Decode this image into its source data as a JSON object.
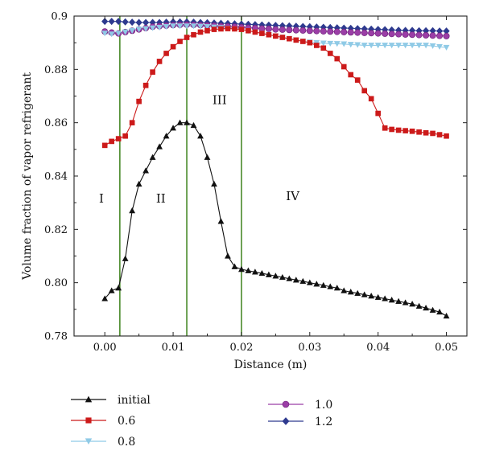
{
  "chart_data": {
    "type": "line",
    "xlabel": "Distance (m)",
    "ylabel": "Volume fraction of vapor refrigerant",
    "xlim": [
      -0.0045,
      0.053
    ],
    "ylim": [
      0.78,
      0.9
    ],
    "x_ticks": [
      0.0,
      0.01,
      0.02,
      0.03,
      0.04,
      0.05
    ],
    "x_tick_labels": [
      "0.00",
      "0.01",
      "0.02",
      "0.03",
      "0.04",
      "0.05"
    ],
    "y_ticks": [
      0.78,
      0.8,
      0.82,
      0.84,
      0.86,
      0.88,
      0.9
    ],
    "y_tick_labels": [
      "0.78",
      "0.80",
      "0.82",
      "0.84",
      "0.86",
      "0.88",
      "0.9"
    ],
    "vertical_lines": [
      0.0022,
      0.012,
      0.02
    ],
    "regions": [
      {
        "label": "I",
        "x": -0.0005,
        "y": 0.83
      },
      {
        "label": "II",
        "x": 0.0082,
        "y": 0.83
      },
      {
        "label": "III",
        "x": 0.0168,
        "y": 0.867
      },
      {
        "label": "IV",
        "x": 0.0275,
        "y": 0.831
      }
    ],
    "grid": false,
    "legend_position": "bottom",
    "series": [
      {
        "name": "initial",
        "color": "#111111",
        "marker": "triangle-up",
        "x": [
          0.0,
          0.001,
          0.002,
          0.003,
          0.004,
          0.005,
          0.006,
          0.007,
          0.008,
          0.009,
          0.01,
          0.011,
          0.012,
          0.013,
          0.014,
          0.015,
          0.016,
          0.017,
          0.018,
          0.019,
          0.02,
          0.021,
          0.022,
          0.023,
          0.024,
          0.025,
          0.026,
          0.027,
          0.028,
          0.029,
          0.03,
          0.031,
          0.032,
          0.033,
          0.034,
          0.035,
          0.036,
          0.037,
          0.038,
          0.039,
          0.04,
          0.041,
          0.042,
          0.043,
          0.044,
          0.045,
          0.046,
          0.047,
          0.048,
          0.049,
          0.05
        ],
        "y": [
          0.794,
          0.797,
          0.798,
          0.809,
          0.827,
          0.837,
          0.842,
          0.847,
          0.851,
          0.855,
          0.858,
          0.86,
          0.86,
          0.859,
          0.855,
          0.847,
          0.837,
          0.823,
          0.81,
          0.806,
          0.805,
          0.8045,
          0.804,
          0.8035,
          0.803,
          0.8025,
          0.802,
          0.8015,
          0.801,
          0.8005,
          0.8,
          0.7995,
          0.799,
          0.7985,
          0.798,
          0.797,
          0.7965,
          0.796,
          0.7955,
          0.795,
          0.7945,
          0.794,
          0.7935,
          0.793,
          0.7925,
          0.792,
          0.7912,
          0.7905,
          0.7897,
          0.789,
          0.7875
        ]
      },
      {
        "name": "0.6",
        "color": "#cc1a1a",
        "marker": "square",
        "x": [
          0.0,
          0.001,
          0.002,
          0.003,
          0.004,
          0.005,
          0.006,
          0.007,
          0.008,
          0.009,
          0.01,
          0.011,
          0.012,
          0.013,
          0.014,
          0.015,
          0.016,
          0.017,
          0.018,
          0.019,
          0.02,
          0.021,
          0.022,
          0.023,
          0.024,
          0.025,
          0.026,
          0.027,
          0.028,
          0.029,
          0.03,
          0.031,
          0.032,
          0.033,
          0.034,
          0.035,
          0.036,
          0.037,
          0.038,
          0.039,
          0.04,
          0.041,
          0.042,
          0.043,
          0.044,
          0.045,
          0.046,
          0.047,
          0.048,
          0.049,
          0.05
        ],
        "y": [
          0.8515,
          0.853,
          0.854,
          0.855,
          0.86,
          0.868,
          0.874,
          0.879,
          0.883,
          0.886,
          0.8885,
          0.8905,
          0.892,
          0.893,
          0.894,
          0.8945,
          0.895,
          0.8952,
          0.8953,
          0.8952,
          0.895,
          0.8945,
          0.894,
          0.8935,
          0.893,
          0.8925,
          0.892,
          0.8915,
          0.891,
          0.8905,
          0.89,
          0.889,
          0.888,
          0.886,
          0.884,
          0.881,
          0.878,
          0.876,
          0.872,
          0.869,
          0.8635,
          0.858,
          0.8575,
          0.8572,
          0.857,
          0.8568,
          0.8565,
          0.8562,
          0.856,
          0.8555,
          0.855
        ]
      },
      {
        "name": "0.8",
        "color": "#8fcae6",
        "marker": "triangle-down",
        "x": [
          0.0,
          0.001,
          0.002,
          0.003,
          0.004,
          0.005,
          0.006,
          0.007,
          0.008,
          0.009,
          0.01,
          0.011,
          0.012,
          0.013,
          0.014,
          0.015,
          0.016,
          0.017,
          0.018,
          0.019,
          0.02,
          0.021,
          0.022,
          0.023,
          0.024,
          0.025,
          0.026,
          0.027,
          0.028,
          0.029,
          0.03,
          0.031,
          0.032,
          0.033,
          0.034,
          0.035,
          0.036,
          0.037,
          0.038,
          0.039,
          0.04,
          0.041,
          0.042,
          0.043,
          0.044,
          0.045,
          0.046,
          0.047,
          0.048,
          0.049,
          0.05
        ],
        "y": [
          0.8935,
          0.8932,
          0.8935,
          0.894,
          0.8945,
          0.895,
          0.8952,
          0.8955,
          0.8957,
          0.896,
          0.8962,
          0.8962,
          0.8962,
          0.8962,
          0.8961,
          0.896,
          0.8958,
          0.8956,
          0.8954,
          0.8952,
          0.895,
          0.8945,
          0.894,
          0.8935,
          0.893,
          0.8925,
          0.892,
          0.8915,
          0.891,
          0.8905,
          0.8902,
          0.89,
          0.8898,
          0.8897,
          0.8896,
          0.8895,
          0.8893,
          0.8892,
          0.889,
          0.889,
          0.889,
          0.889,
          0.889,
          0.889,
          0.889,
          0.889,
          0.889,
          0.889,
          0.8888,
          0.8885,
          0.8882
        ]
      },
      {
        "name": "1.0",
        "color": "#9b3ea6",
        "marker": "circle",
        "x": [
          0.0,
          0.001,
          0.002,
          0.003,
          0.004,
          0.005,
          0.006,
          0.007,
          0.008,
          0.009,
          0.01,
          0.011,
          0.012,
          0.013,
          0.014,
          0.015,
          0.016,
          0.017,
          0.018,
          0.019,
          0.02,
          0.021,
          0.022,
          0.023,
          0.024,
          0.025,
          0.026,
          0.027,
          0.028,
          0.029,
          0.03,
          0.031,
          0.032,
          0.033,
          0.034,
          0.035,
          0.036,
          0.037,
          0.038,
          0.039,
          0.04,
          0.041,
          0.042,
          0.043,
          0.044,
          0.045,
          0.046,
          0.047,
          0.048,
          0.049,
          0.05
        ],
        "y": [
          0.8942,
          0.8938,
          0.8935,
          0.894,
          0.8945,
          0.895,
          0.8955,
          0.896,
          0.8962,
          0.8964,
          0.8966,
          0.8967,
          0.8968,
          0.8967,
          0.8966,
          0.8965,
          0.8964,
          0.8962,
          0.8961,
          0.896,
          0.8958,
          0.8956,
          0.8955,
          0.8953,
          0.8952,
          0.895,
          0.8949,
          0.8948,
          0.8947,
          0.8946,
          0.8945,
          0.8944,
          0.8943,
          0.8942,
          0.8941,
          0.894,
          0.8939,
          0.8938,
          0.8937,
          0.8936,
          0.8935,
          0.8934,
          0.8933,
          0.8932,
          0.8931,
          0.893,
          0.8929,
          0.8928,
          0.8927,
          0.8926,
          0.8925
        ]
      },
      {
        "name": "1.2",
        "color": "#2e3a8f",
        "marker": "diamond",
        "x": [
          0.0,
          0.001,
          0.002,
          0.003,
          0.004,
          0.005,
          0.006,
          0.007,
          0.008,
          0.009,
          0.01,
          0.011,
          0.012,
          0.013,
          0.014,
          0.015,
          0.016,
          0.017,
          0.018,
          0.019,
          0.02,
          0.021,
          0.022,
          0.023,
          0.024,
          0.025,
          0.026,
          0.027,
          0.028,
          0.029,
          0.03,
          0.031,
          0.032,
          0.033,
          0.034,
          0.035,
          0.036,
          0.037,
          0.038,
          0.039,
          0.04,
          0.041,
          0.042,
          0.043,
          0.044,
          0.045,
          0.046,
          0.047,
          0.048,
          0.049,
          0.05
        ],
        "y": [
          0.898,
          0.898,
          0.898,
          0.8978,
          0.8977,
          0.8976,
          0.8976,
          0.8976,
          0.8976,
          0.8977,
          0.8978,
          0.8978,
          0.8978,
          0.8977,
          0.8976,
          0.8975,
          0.8974,
          0.8973,
          0.8972,
          0.8971,
          0.897,
          0.8969,
          0.8968,
          0.8967,
          0.8966,
          0.8965,
          0.8964,
          0.8963,
          0.8962,
          0.8961,
          0.896,
          0.8959,
          0.8958,
          0.8957,
          0.8956,
          0.8955,
          0.8954,
          0.8953,
          0.8952,
          0.8951,
          0.895,
          0.8949,
          0.8948,
          0.8947,
          0.8946,
          0.8946,
          0.8945,
          0.8945,
          0.8945,
          0.8944,
          0.8944
        ]
      }
    ]
  }
}
